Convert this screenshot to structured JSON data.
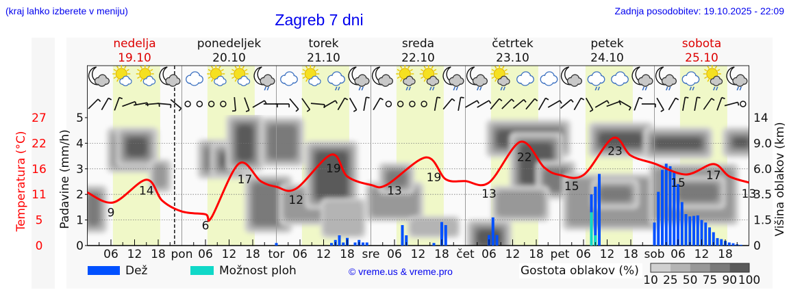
{
  "header": {
    "location_hint": "(kraj lahko izberete v meniju)",
    "title": "Zagreb 7 dni",
    "updated": "Zadnja posodobitev: 19.10.2025 - 22:09"
  },
  "days": [
    {
      "name": "nedelja",
      "date": "19.10",
      "weekend": true,
      "abbr": ""
    },
    {
      "name": "ponedeljek",
      "date": "20.10",
      "weekend": false,
      "abbr": "pon"
    },
    {
      "name": "torek",
      "date": "21.10",
      "weekend": false,
      "abbr": "tor"
    },
    {
      "name": "sreda",
      "date": "22.10",
      "weekend": false,
      "abbr": "sre"
    },
    {
      "name": "četrtek",
      "date": "23.10",
      "weekend": false,
      "abbr": "čet"
    },
    {
      "name": "petek",
      "date": "24.10",
      "weekend": false,
      "abbr": "pet"
    },
    {
      "name": "sobota",
      "date": "25.10",
      "weekend": true,
      "abbr": "sob"
    }
  ],
  "hour_ticks": [
    "06",
    "12",
    "18"
  ],
  "icons": [
    "moon-cloud",
    "sun-cloud",
    "sun-cloud",
    "moon-cloud",
    "cloud",
    "sun-cloud",
    "sun-cloud",
    "moon-cloud-rain",
    "cloud",
    "sun-cloud",
    "cloud-rain",
    "moon-cloud-rain",
    "moon-cloud",
    "sun-cloud-rain",
    "sun-cloud-rain",
    "moon-cloud-rain",
    "moon-cloud-rain",
    "sun-cloud-rain",
    "cloud",
    "cloud",
    "moon-cloud",
    "cloud-rain",
    "cloud",
    "moon-cloud-rain",
    "moon-cloud-rain",
    "cloud-rain",
    "sun-cloud-rain",
    "moon-cloud-rain"
  ],
  "wind_directions_deg": [
    45,
    30,
    20,
    70,
    80,
    85,
    95,
    130,
    "calm",
    "calm",
    "calm",
    "calm",
    175,
    160,
    60,
    90,
    90,
    140,
    145,
    95,
    60,
    30,
    150,
    10,
    30,
    "calm",
    "calm",
    "calm",
    "calm",
    10,
    40,
    10,
    60,
    60,
    40,
    45,
    50,
    40,
    30,
    60,
    50,
    30,
    150,
    60,
    70,
    120,
    20,
    90,
    150,
    30,
    10,
    10,
    35,
    20,
    75,
    "calm"
  ],
  "current_time_hour": 22.15,
  "legend": {
    "rain": "Dež",
    "shower": "Možnost ploh",
    "copyright": "© vreme.us & vreme.pro",
    "cloud_density": "Gostota oblakov (%)",
    "density_levels": [
      "10",
      "25",
      "50",
      "75",
      "90",
      "100"
    ]
  },
  "colors": {
    "rain": "#0050ff",
    "shower": "#10d8c8",
    "temperature": "#ff0000",
    "weekend": "#dd0000",
    "header": "#0000ee",
    "daylight": "#f0f8c8",
    "density": [
      "#d0d0d0",
      "#b4b4b4",
      "#989898",
      "#7a7a7a",
      "#5a5a5a"
    ]
  },
  "chart_data": {
    "type": "line",
    "title": "Zagreb 7 dni",
    "x_unit": "hours from 19.10 00:00",
    "axes": {
      "precip": {
        "label": "Padavine (mm/h)",
        "ticks": [
          "0",
          "1",
          "2",
          "3",
          "4",
          "5"
        ],
        "range": [
          0,
          5
        ]
      },
      "temperature": {
        "label": "Temperatura (°C)",
        "ticks": [
          "0",
          "5",
          "11",
          "16",
          "22",
          "27"
        ],
        "range": [
          0,
          27
        ]
      },
      "cloud_height": {
        "label": "Višina oblakov (km)",
        "ticks": [
          "0",
          "1.5",
          "3.5",
          "6.0",
          "9.0",
          "14"
        ],
        "values": [
          0,
          1.5,
          3.5,
          6.0,
          9.0,
          14
        ]
      }
    },
    "daylight_hours": [
      6.5,
      18.5
    ],
    "temperature": {
      "hours": [
        0,
        6.6,
        15,
        19,
        24,
        30,
        31.5,
        38.5,
        44,
        48,
        53,
        62,
        66,
        72,
        76,
        86,
        91,
        96,
        102,
        110,
        116,
        120,
        126,
        133.5,
        138,
        144,
        152,
        159,
        163,
        168
      ],
      "values": [
        11.2,
        9.1,
        13.9,
        9.5,
        7.2,
        6.6,
        5.9,
        17.3,
        13.6,
        12.4,
        12.0,
        19.2,
        14.6,
        12.8,
        12.8,
        18.6,
        14.0,
        13.6,
        13.3,
        21.9,
        16.5,
        14.9,
        14.9,
        22.7,
        19.0,
        17.3,
        15.0,
        17.2,
        14.6,
        13.3
      ]
    },
    "temperature_labels": [
      {
        "hour": 6,
        "value": "9"
      },
      {
        "hour": 15,
        "value": "14"
      },
      {
        "hour": 30,
        "value": "6"
      },
      {
        "hour": 40,
        "value": "17"
      },
      {
        "hour": 53,
        "value": "12"
      },
      {
        "hour": 62.5,
        "value": "19"
      },
      {
        "hour": 78,
        "value": "13"
      },
      {
        "hour": 88,
        "value": "19"
      },
      {
        "hour": 102,
        "value": "13"
      },
      {
        "hour": 111,
        "value": "22"
      },
      {
        "hour": 123,
        "value": "15"
      },
      {
        "hour": 134,
        "value": "23"
      },
      {
        "hour": 150,
        "value": "15"
      },
      {
        "hour": 159,
        "value": "17"
      },
      {
        "hour": 168,
        "value": "13"
      }
    ],
    "rain": {
      "hours": [
        48,
        62,
        63,
        64,
        65,
        66,
        68,
        69,
        70,
        71,
        80,
        81,
        88,
        90,
        91,
        102,
        103,
        104,
        128,
        129,
        130,
        144,
        145,
        146,
        147,
        148,
        149,
        150,
        151,
        152,
        153,
        154,
        155,
        156,
        157,
        158,
        159,
        160,
        161,
        162,
        163,
        164,
        165,
        166
      ],
      "values": [
        0.1,
        0.1,
        0.22,
        0.4,
        0.12,
        0.3,
        0.12,
        0.22,
        0.12,
        0.12,
        0.8,
        0.4,
        0.1,
        0.92,
        0.8,
        0.41,
        1.1,
        0.41,
        2.0,
        2.3,
        2.8,
        0.9,
        2.1,
        2.96,
        3.2,
        3.1,
        2.85,
        2.4,
        1.7,
        1.23,
        1.14,
        1.16,
        1.18,
        1.0,
        0.9,
        0.71,
        0.52,
        0.29,
        0.25,
        0.18,
        0.12,
        0.09,
        0.05,
        0.03
      ]
    },
    "shower": {
      "hours": [
        128,
        129
      ],
      "values": [
        1.3,
        0.4
      ]
    },
    "clouds": [
      {
        "hours": [
          0,
          3
        ],
        "km": [
          1.2,
          3.6
        ],
        "density": 75
      },
      {
        "hours": [
          7,
          16
        ],
        "km": [
          6.5,
          10.5
        ],
        "density": 75
      },
      {
        "hours": [
          10,
          15
        ],
        "km": [
          7.5,
          10.0
        ],
        "density": 90
      },
      {
        "hours": [
          17,
          20
        ],
        "km": [
          4.2,
          6.5
        ],
        "density": 50
      },
      {
        "hours": [
          30,
          40
        ],
        "km": [
          5.8,
          8.5
        ],
        "density": 75
      },
      {
        "hours": [
          34,
          38
        ],
        "km": [
          6.2,
          7.8
        ],
        "density": 90
      },
      {
        "hours": [
          38,
          42
        ],
        "km": [
          7.0,
          12.5
        ],
        "density": 90
      },
      {
        "hours": [
          42,
          50
        ],
        "km": [
          1.2,
          4.6
        ],
        "density": 75
      },
      {
        "hours": [
          46,
          53
        ],
        "km": [
          7.2,
          12.5
        ],
        "density": 75
      },
      {
        "hours": [
          50,
          60
        ],
        "km": [
          1.5,
          4.0
        ],
        "density": 50
      },
      {
        "hours": [
          58,
          66
        ],
        "km": [
          3.2,
          8.0
        ],
        "density": 90
      },
      {
        "hours": [
          60,
          70
        ],
        "km": [
          0.6,
          3.0
        ],
        "density": 25
      },
      {
        "hours": [
          72,
          84
        ],
        "km": [
          1.8,
          4.2
        ],
        "density": 50
      },
      {
        "hours": [
          76,
          81
        ],
        "km": [
          4.3,
          5.8
        ],
        "density": 75
      },
      {
        "hours": [
          82,
          94
        ],
        "km": [
          0.6,
          1.6
        ],
        "density": 25
      },
      {
        "hours": [
          99,
          105
        ],
        "km": [
          0.0,
          0.9
        ],
        "density": 90
      },
      {
        "hours": [
          104,
          120
        ],
        "km": [
          8.6,
          11.5
        ],
        "density": 90
      },
      {
        "hours": [
          110,
          118
        ],
        "km": [
          4.5,
          9.0
        ],
        "density": 90
      },
      {
        "hours": [
          116,
          122
        ],
        "km": [
          3.8,
          6.0
        ],
        "density": 75
      },
      {
        "hours": [
          104,
          116
        ],
        "km": [
          1.8,
          3.8
        ],
        "density": 50
      },
      {
        "hours": [
          122,
          144
        ],
        "km": [
          1.2,
          5.0
        ],
        "density": 50
      },
      {
        "hours": [
          130,
          138
        ],
        "km": [
          3.0,
          4.2
        ],
        "density": 75
      },
      {
        "hours": [
          130,
          141
        ],
        "km": [
          8.6,
          11.0
        ],
        "density": 90
      },
      {
        "hours": [
          144,
          156
        ],
        "km": [
          8.4,
          10.0
        ],
        "density": 90
      },
      {
        "hours": [
          144,
          164
        ],
        "km": [
          1.5,
          6.0
        ],
        "density": 50
      },
      {
        "hours": [
          150,
          160
        ],
        "km": [
          3.0,
          4.5
        ],
        "density": 75
      },
      {
        "hours": [
          164,
          168
        ],
        "km": [
          8.6,
          10.0
        ],
        "density": 90
      }
    ]
  }
}
